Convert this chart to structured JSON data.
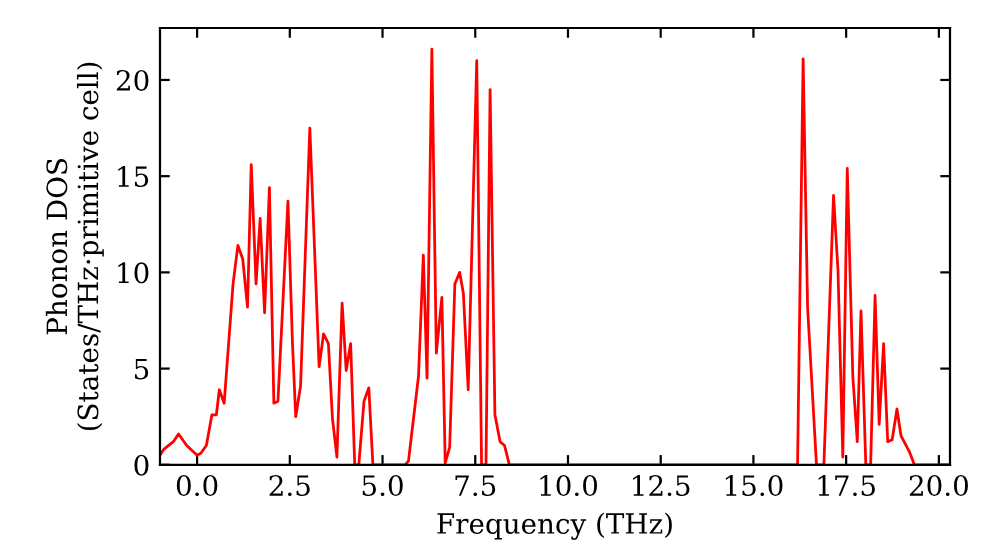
{
  "chart_data": {
    "type": "line",
    "xlabel": "Frequency (THz)",
    "ylabel": "Phonon DOS\n(States/THz·primitive cell)",
    "xlim": [
      -1.0,
      20.3
    ],
    "ylim": [
      0,
      22.7
    ],
    "xticks": [
      {
        "value": 0,
        "label": "0.0"
      },
      {
        "value": 2.5,
        "label": "2.5"
      },
      {
        "value": 5,
        "label": "5.0"
      },
      {
        "value": 7.5,
        "label": "7.5"
      },
      {
        "value": 10,
        "label": "10.0"
      },
      {
        "value": 12.5,
        "label": "12.5"
      },
      {
        "value": 15,
        "label": "15.0"
      },
      {
        "value": 17.5,
        "label": "17.5"
      },
      {
        "value": 20,
        "label": "20.0"
      }
    ],
    "yticks": [
      0,
      5,
      10,
      15,
      20
    ],
    "grid": false,
    "marker": "none",
    "line_style": "solid",
    "series": [
      {
        "color": "#ff0000",
        "x": [
          -1.0,
          -0.9,
          -0.64,
          -0.5,
          -0.28,
          0.0,
          0.1,
          0.25,
          0.4,
          0.52,
          0.6,
          0.73,
          0.97,
          1.1,
          1.23,
          1.36,
          1.46,
          1.59,
          1.7,
          1.82,
          1.95,
          2.07,
          2.18,
          2.45,
          2.57,
          2.66,
          2.79,
          3.04,
          3.29,
          3.41,
          3.54,
          3.65,
          3.77,
          3.91,
          4.02,
          4.14,
          4.25,
          4.36,
          4.5,
          4.63,
          4.74,
          5.61,
          5.7,
          5.97,
          6.1,
          6.2,
          6.33,
          6.45,
          6.6,
          6.69,
          6.81,
          6.95,
          7.08,
          7.18,
          7.31,
          7.54,
          7.67,
          7.79,
          7.9,
          8.03,
          8.17,
          8.29,
          8.42,
          16.19,
          16.34,
          16.46,
          16.7,
          16.9,
          17.16,
          17.28,
          17.41,
          17.53,
          17.68,
          17.8,
          17.9,
          18.03,
          18.16,
          18.28,
          18.39,
          18.51,
          18.62,
          18.74,
          18.87,
          18.98,
          19.2,
          19.34,
          20.3
        ],
        "values": [
          0.5,
          0.8,
          1.2,
          1.6,
          1.0,
          0.5,
          0.6,
          1.0,
          2.6,
          2.6,
          3.9,
          3.2,
          9.4,
          11.4,
          10.7,
          8.2,
          15.6,
          9.4,
          12.8,
          7.9,
          14.4,
          3.2,
          3.3,
          13.7,
          6.4,
          2.5,
          4.1,
          17.5,
          5.1,
          6.8,
          6.3,
          2.4,
          0.4,
          8.4,
          4.9,
          6.3,
          0,
          0,
          3.3,
          4.0,
          0,
          0,
          0.2,
          4.6,
          10.9,
          4.5,
          21.6,
          5.8,
          8.7,
          0.1,
          0.9,
          9.4,
          10.0,
          8.9,
          3.9,
          21.0,
          0,
          0,
          19.5,
          2.6,
          1.2,
          1.0,
          0,
          0,
          21.1,
          8.2,
          0,
          0,
          14.0,
          10.1,
          0.4,
          15.4,
          4.6,
          1.2,
          8.0,
          0,
          0,
          8.8,
          2.1,
          6.3,
          1.2,
          1.3,
          2.9,
          1.5,
          0.7,
          0,
          0
        ]
      }
    ]
  }
}
